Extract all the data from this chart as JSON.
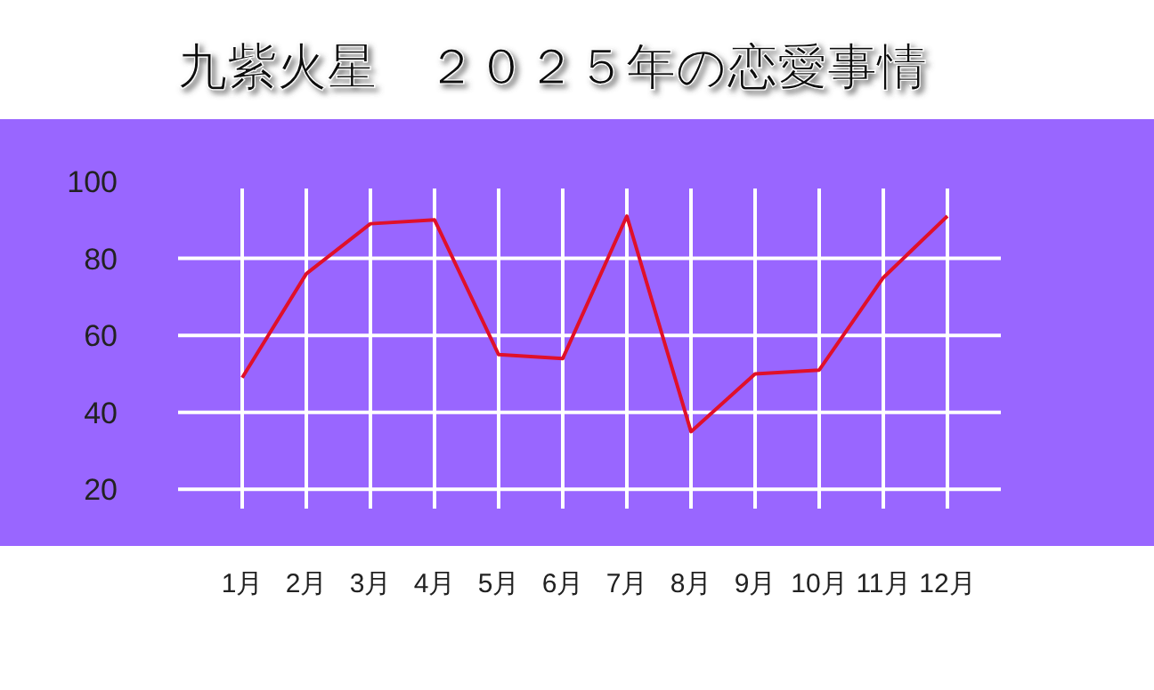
{
  "chart_data": {
    "type": "line",
    "title": "九紫火星　２０２５年の恋愛事情",
    "categories": [
      "1月",
      "2月",
      "3月",
      "4月",
      "5月",
      "6月",
      "7月",
      "8月",
      "9月",
      "10月",
      "11月",
      "12月"
    ],
    "series": [
      {
        "color": "#e0102a",
        "values": [
          49,
          76,
          89,
          90,
          55,
          54,
          91,
          35,
          50,
          51,
          75,
          91
        ]
      }
    ],
    "ylim": [
      15,
      100
    ],
    "yticks": [
      20,
      40,
      60,
      80,
      100
    ],
    "grid": true,
    "marker": "none",
    "line_style": "solid"
  }
}
